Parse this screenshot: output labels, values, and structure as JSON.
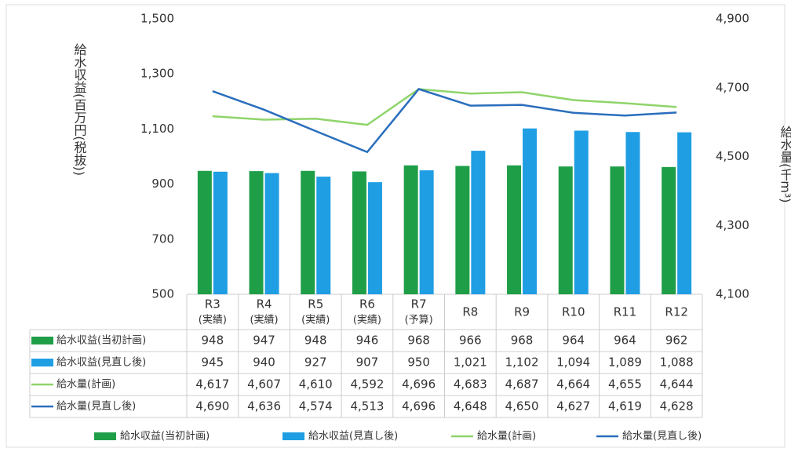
{
  "chart_data": {
    "type": "bar-line",
    "categories": [
      "R3",
      "R4",
      "R5",
      "R6",
      "R7",
      "R8",
      "R9",
      "R10",
      "R11",
      "R12"
    ],
    "category_notes": [
      "(実績)",
      "(実績)",
      "(実績)",
      "(実績)",
      "(予算)",
      null,
      null,
      null,
      null,
      null
    ],
    "ylabel": "給水収益(百万円(税抜))",
    "y2label": "給水量(千m³)",
    "ylim": [
      500,
      1500
    ],
    "yticks": [
      500,
      700,
      900,
      {
        "value": 1100,
        "label": "1,100"
      },
      {
        "value": 1300,
        "label": "1,300"
      },
      {
        "value": 1500,
        "label": "1,500"
      }
    ],
    "y2lim": [
      4100,
      4900
    ],
    "y2ticks": [
      {
        "value": 4100,
        "label": "4,100"
      },
      {
        "value": 4300,
        "label": "4,300"
      },
      {
        "value": 4500,
        "label": "4,500"
      },
      {
        "value": 4700,
        "label": "4,700"
      },
      {
        "value": 4900,
        "label": "4,900"
      }
    ],
    "grid": false,
    "legend": "bottom",
    "series": [
      {
        "name": "給水収益(当初計画)",
        "kind": "bar",
        "color": "#1f9e48",
        "values": [
          948,
          947,
          948,
          946,
          968,
          966,
          968,
          964,
          964,
          962
        ]
      },
      {
        "name": "給水収益(見直し後)",
        "kind": "bar",
        "color": "#1f9ee3",
        "values": [
          945,
          940,
          927,
          907,
          950,
          1021,
          1102,
          1094,
          1089,
          1088
        ],
        "value_labels": [
          "945",
          "940",
          "927",
          "907",
          "950",
          "1,021",
          "1,102",
          "1,094",
          "1,089",
          "1,088"
        ]
      },
      {
        "name": "給水量(計画)",
        "kind": "line",
        "axis": "y2",
        "color": "#8fd46a",
        "values": [
          4617,
          4607,
          4610,
          4592,
          4696,
          4683,
          4687,
          4664,
          4655,
          4644
        ],
        "value_labels": [
          "4,617",
          "4,607",
          "4,610",
          "4,592",
          "4,696",
          "4,683",
          "4,687",
          "4,664",
          "4,655",
          "4,644"
        ]
      },
      {
        "name": "給水量(見直し後)",
        "kind": "line",
        "axis": "y2",
        "color": "#2a6ebd",
        "values": [
          4690,
          4636,
          4574,
          4513,
          4696,
          4648,
          4650,
          4627,
          4619,
          4628
        ],
        "value_labels": [
          "4,690",
          "4,636",
          "4,574",
          "4,513",
          "4,696",
          "4,648",
          "4,650",
          "4,627",
          "4,619",
          "4,628"
        ]
      }
    ]
  }
}
